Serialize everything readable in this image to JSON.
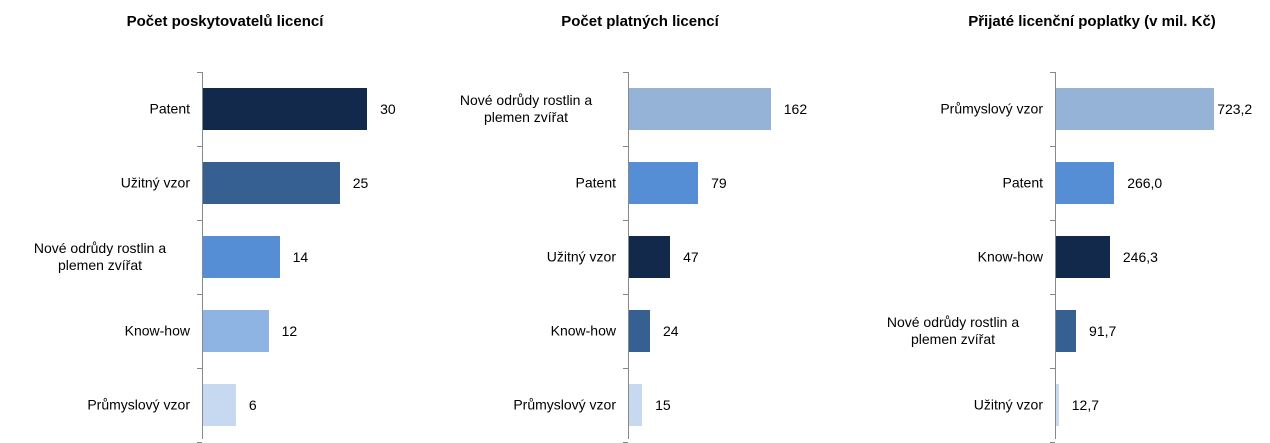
{
  "chart_data": [
    {
      "type": "hbar",
      "title": "Počet poskytovatelů licencí",
      "categories": [
        "Patent",
        "Užitný vzor",
        "Nové odrůdy rostlin a plemen zvířat",
        "Know-how",
        "Průmyslový vzor"
      ],
      "values": [
        30,
        25,
        14,
        12,
        6
      ],
      "colors": [
        "#13294b",
        "#376092",
        "#558ed5",
        "#8eb4e3",
        "#c6d9f1"
      ],
      "xlim": [
        0,
        32
      ]
    },
    {
      "type": "hbar",
      "title": "Počet platných licencí",
      "categories": [
        "Nové odrůdy rostlin a plemen zvířat",
        "Patent",
        "Užitný vzor",
        "Know-how",
        "Průmyslový vzor"
      ],
      "values": [
        162,
        79,
        47,
        24,
        15
      ],
      "colors": [
        "#95b3d7",
        "#558ed5",
        "#13294b",
        "#376092",
        "#c6d9f1"
      ],
      "xlim": [
        0,
        200
      ]
    },
    {
      "type": "hbar",
      "title": "Přijaté licenční poplatky (v mil. Kč)",
      "categories": [
        "Průmyslový vzor",
        "Patent",
        "Know-how",
        "Nové odrůdy rostlin a plemen zvířat",
        "Užitný vzor"
      ],
      "values": [
        723.2,
        266.0,
        246.3,
        91.7,
        12.7
      ],
      "value_labels": [
        "723,2",
        "266,0",
        "246,3",
        "91,7",
        "12,7"
      ],
      "colors": [
        "#95b3d7",
        "#558ed5",
        "#13294b",
        "#376092",
        "#c6d9f1"
      ],
      "xlim": [
        0,
        800
      ]
    }
  ]
}
